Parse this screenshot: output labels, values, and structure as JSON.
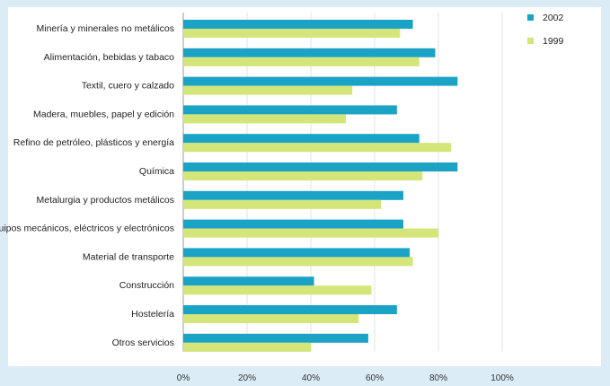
{
  "chart_data": {
    "type": "bar",
    "orientation": "horizontal",
    "categories": [
      "Minería y minerales no metálicos",
      "Alimentación, bebidas y tabaco",
      "Textil, cuero y calzado",
      "Madera, muebles, papel y edición",
      "Refino de petróleo, plásticos y energía",
      "Química",
      "Metalurgia y productos metálicos",
      "Equipos mecánicos, eléctricos y electrónicos",
      "Material de transporte",
      "Construcción",
      "Hostelería",
      "Otros servicios"
    ],
    "series": [
      {
        "name": "2002",
        "color": "#1aa3c4",
        "values": [
          72,
          79,
          86,
          67,
          74,
          86,
          69,
          69,
          71,
          41,
          67,
          58
        ]
      },
      {
        "name": "1999",
        "color": "#d4e579",
        "values": [
          68,
          74,
          53,
          51,
          84,
          75,
          62,
          80,
          72,
          59,
          55,
          40
        ]
      }
    ],
    "xlim": [
      0,
      100
    ],
    "xticks": [
      "0%",
      "20%",
      "40%",
      "60%",
      "80%",
      "100%"
    ],
    "grid": true,
    "legend_position": "top-right",
    "title": "",
    "xlabel": "",
    "ylabel": ""
  }
}
